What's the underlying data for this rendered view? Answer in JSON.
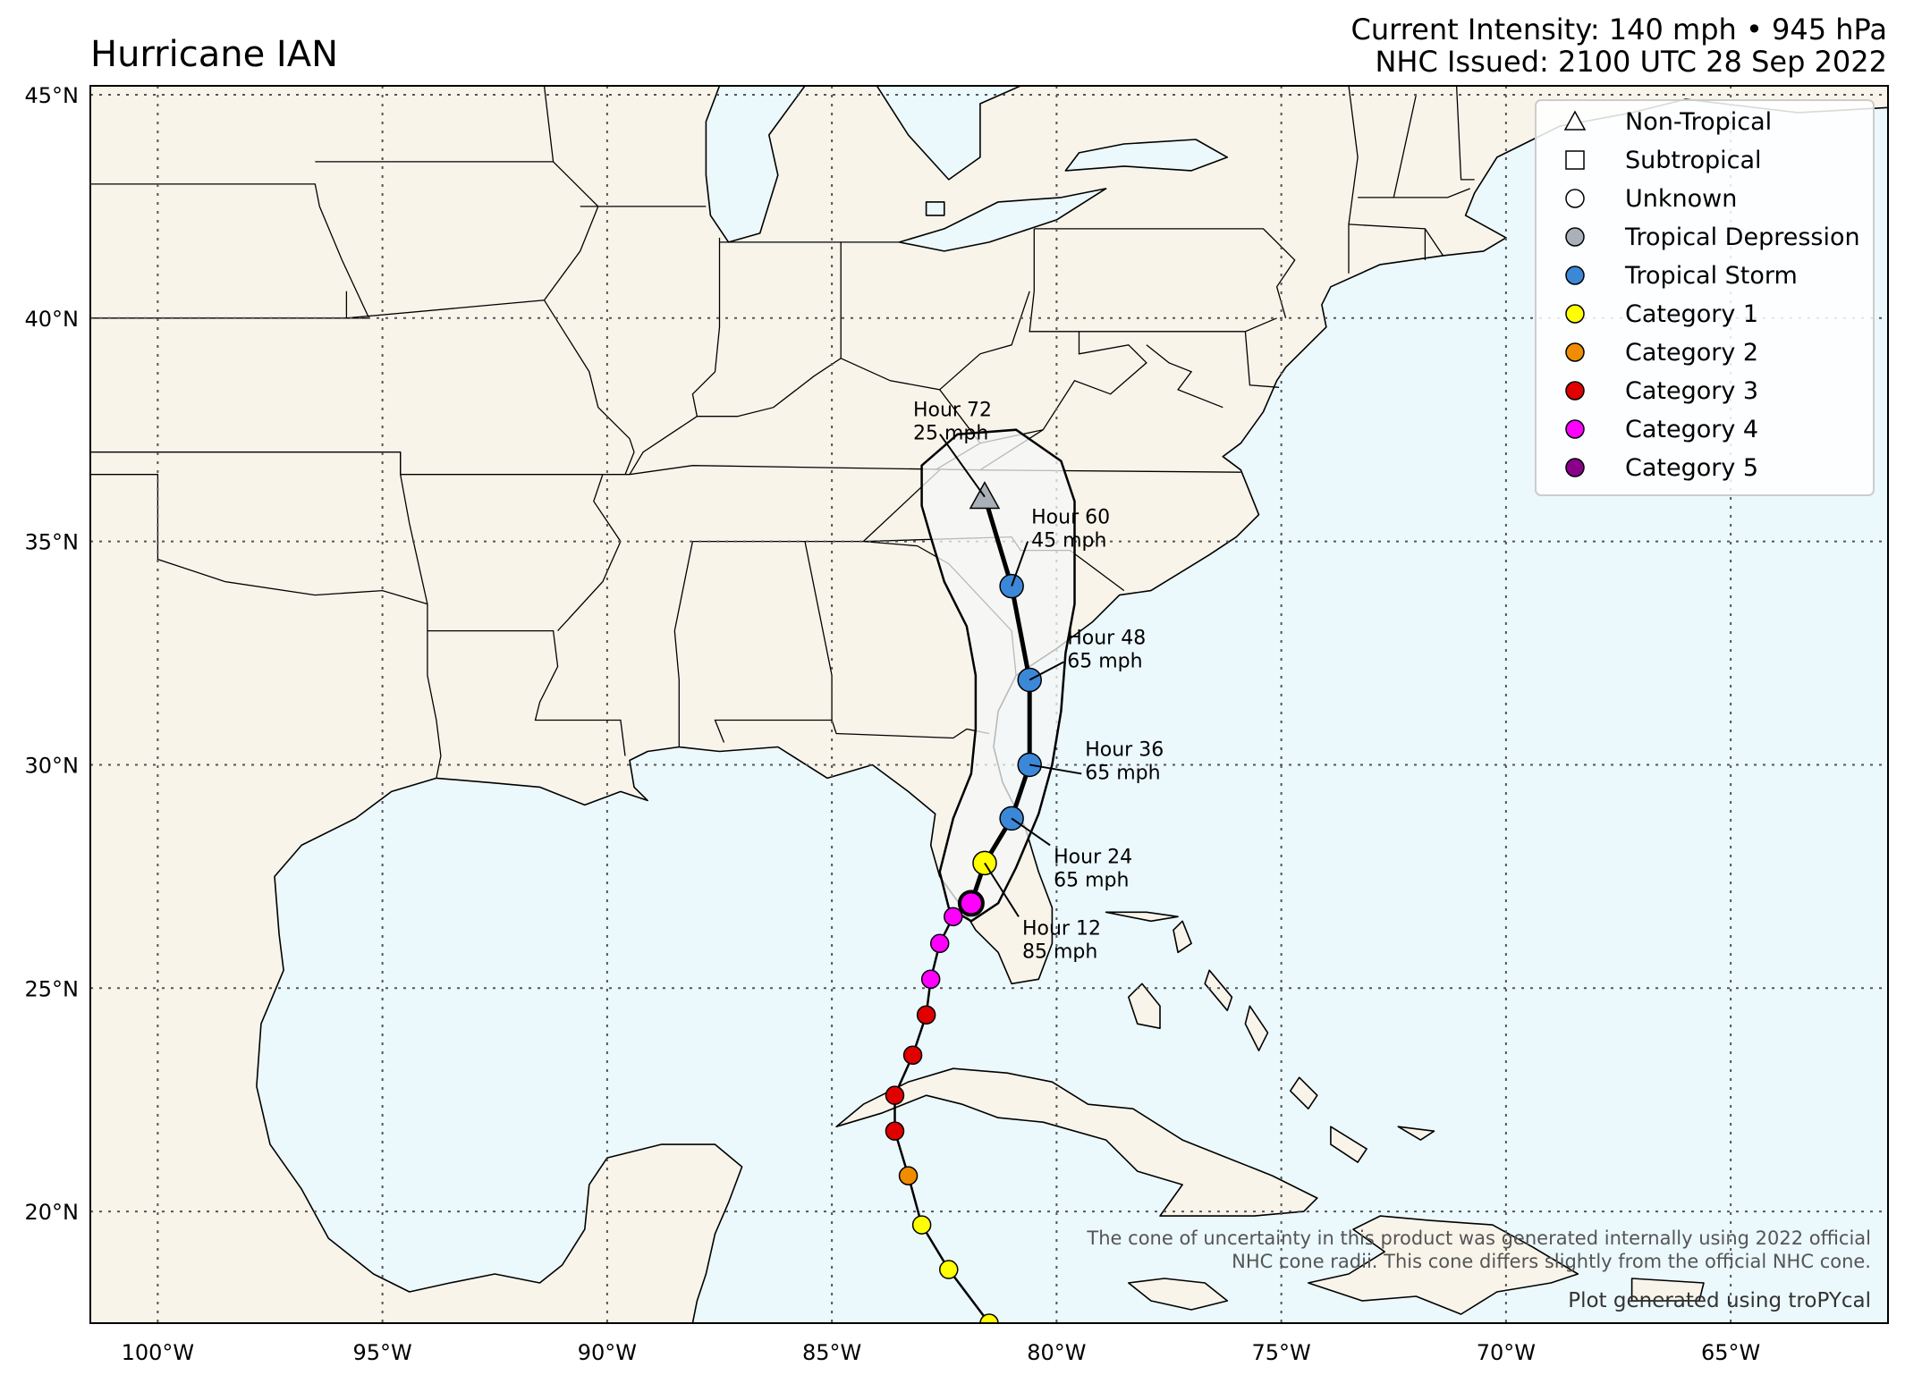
{
  "header": {
    "title": "Hurricane IAN",
    "current_intensity": "Current Intensity: 140 mph • 945 hPa",
    "issued": "NHC Issued: 2100 UTC 28 Sep 2022"
  },
  "map": {
    "lon_range": [
      -101.5,
      -61.5
    ],
    "lat_range": [
      17.5,
      45.2
    ],
    "lon_ticks": [
      {
        "value": -100,
        "label": "100°W"
      },
      {
        "value": -95,
        "label": "95°W"
      },
      {
        "value": -90,
        "label": "90°W"
      },
      {
        "value": -85,
        "label": "85°W"
      },
      {
        "value": -80,
        "label": "80°W"
      },
      {
        "value": -75,
        "label": "75°W"
      },
      {
        "value": -70,
        "label": "70°W"
      },
      {
        "value": -65,
        "label": "65°W"
      }
    ],
    "lat_ticks": [
      {
        "value": 45,
        "label": "45°N"
      },
      {
        "value": 40,
        "label": "40°N"
      },
      {
        "value": 35,
        "label": "35°N"
      },
      {
        "value": 30,
        "label": "30°N"
      },
      {
        "value": 25,
        "label": "25°N"
      },
      {
        "value": 20,
        "label": "20°N"
      }
    ],
    "colors": {
      "land": "#f8f4ea",
      "ocean": "#ebf8fc",
      "cone_fill": "#f6f7f7",
      "grid": "#555555"
    }
  },
  "past_track": [
    {
      "lon": -81.5,
      "lat": 17.5,
      "category": "Category 1"
    },
    {
      "lon": -82.4,
      "lat": 18.7,
      "category": "Category 1"
    },
    {
      "lon": -83.0,
      "lat": 19.7,
      "category": "Category 1"
    },
    {
      "lon": -83.3,
      "lat": 20.8,
      "category": "Category 2"
    },
    {
      "lon": -83.6,
      "lat": 21.8,
      "category": "Category 3"
    },
    {
      "lon": -83.6,
      "lat": 22.6,
      "category": "Category 3"
    },
    {
      "lon": -83.2,
      "lat": 23.5,
      "category": "Category 3"
    },
    {
      "lon": -82.9,
      "lat": 24.4,
      "category": "Category 3"
    },
    {
      "lon": -82.8,
      "lat": 25.2,
      "category": "Category 4"
    },
    {
      "lon": -82.6,
      "lat": 26.0,
      "category": "Category 4"
    },
    {
      "lon": -82.3,
      "lat": 26.6,
      "category": "Category 4"
    }
  ],
  "forecast_track": [
    {
      "lon": -81.9,
      "lat": 26.9,
      "category": "Category 4",
      "current": true
    },
    {
      "lon": -81.6,
      "lat": 27.8,
      "category": "Category 1"
    },
    {
      "lon": -81.0,
      "lat": 28.8,
      "category": "Tropical Storm"
    },
    {
      "lon": -80.6,
      "lat": 30.0,
      "category": "Tropical Storm"
    },
    {
      "lon": -80.6,
      "lat": 31.9,
      "category": "Tropical Storm"
    },
    {
      "lon": -81.0,
      "lat": 34.0,
      "category": "Tropical Storm"
    },
    {
      "lon": -81.6,
      "lat": 36.0,
      "category": "Non-Tropical"
    }
  ],
  "forecast_labels": [
    {
      "hour": "Hour 12",
      "wind": "85 mph"
    },
    {
      "hour": "Hour 24",
      "wind": "65 mph"
    },
    {
      "hour": "Hour 36",
      "wind": "65 mph"
    },
    {
      "hour": "Hour 48",
      "wind": "65 mph"
    },
    {
      "hour": "Hour 60",
      "wind": "45 mph"
    },
    {
      "hour": "Hour 72",
      "wind": "25 mph"
    }
  ],
  "legend": [
    {
      "label": "Non-Tropical",
      "shape": "triangle",
      "color": "#ffffff"
    },
    {
      "label": "Subtropical",
      "shape": "square",
      "color": "#ffffff"
    },
    {
      "label": "Unknown",
      "shape": "circle",
      "color": "#ffffff"
    },
    {
      "label": "Tropical Depression",
      "shape": "circle",
      "color": "#a9b0b8"
    },
    {
      "label": "Tropical Storm",
      "shape": "circle",
      "color": "#3c88d8"
    },
    {
      "label": "Category 1",
      "shape": "circle",
      "color": "#ffff00"
    },
    {
      "label": "Category 2",
      "shape": "circle",
      "color": "#f08c00"
    },
    {
      "label": "Category 3",
      "shape": "circle",
      "color": "#e00000"
    },
    {
      "label": "Category 4",
      "shape": "circle",
      "color": "#ff00ff"
    },
    {
      "label": "Category 5",
      "shape": "circle",
      "color": "#8b008b"
    }
  ],
  "footnote": {
    "line1": "The cone of uncertainty in this product was generated internally using 2022 official",
    "line2": "NHC cone radii. This cone differs slightly from the official NHC cone.",
    "credit": "Plot generated using troPYcal"
  }
}
